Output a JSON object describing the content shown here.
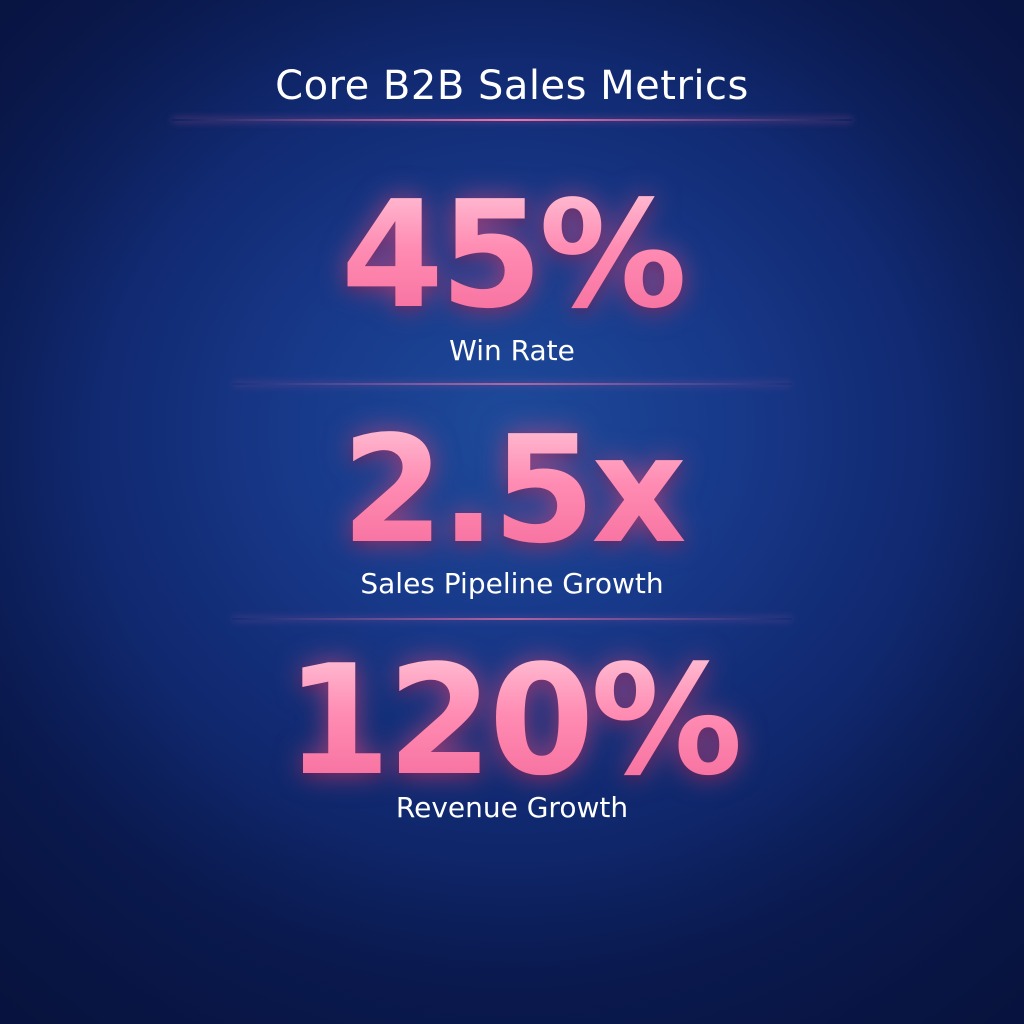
{
  "title": "Core B2B Sales Metrics",
  "colors": {
    "background": "#18398a",
    "accent": "#ff8cb3",
    "text": "#ffffff"
  },
  "metrics": [
    {
      "value": "45%",
      "label": "Win Rate"
    },
    {
      "value": "2.5x",
      "label": "Sales Pipeline Growth"
    },
    {
      "value": "120%",
      "label": "Revenue Growth"
    }
  ]
}
